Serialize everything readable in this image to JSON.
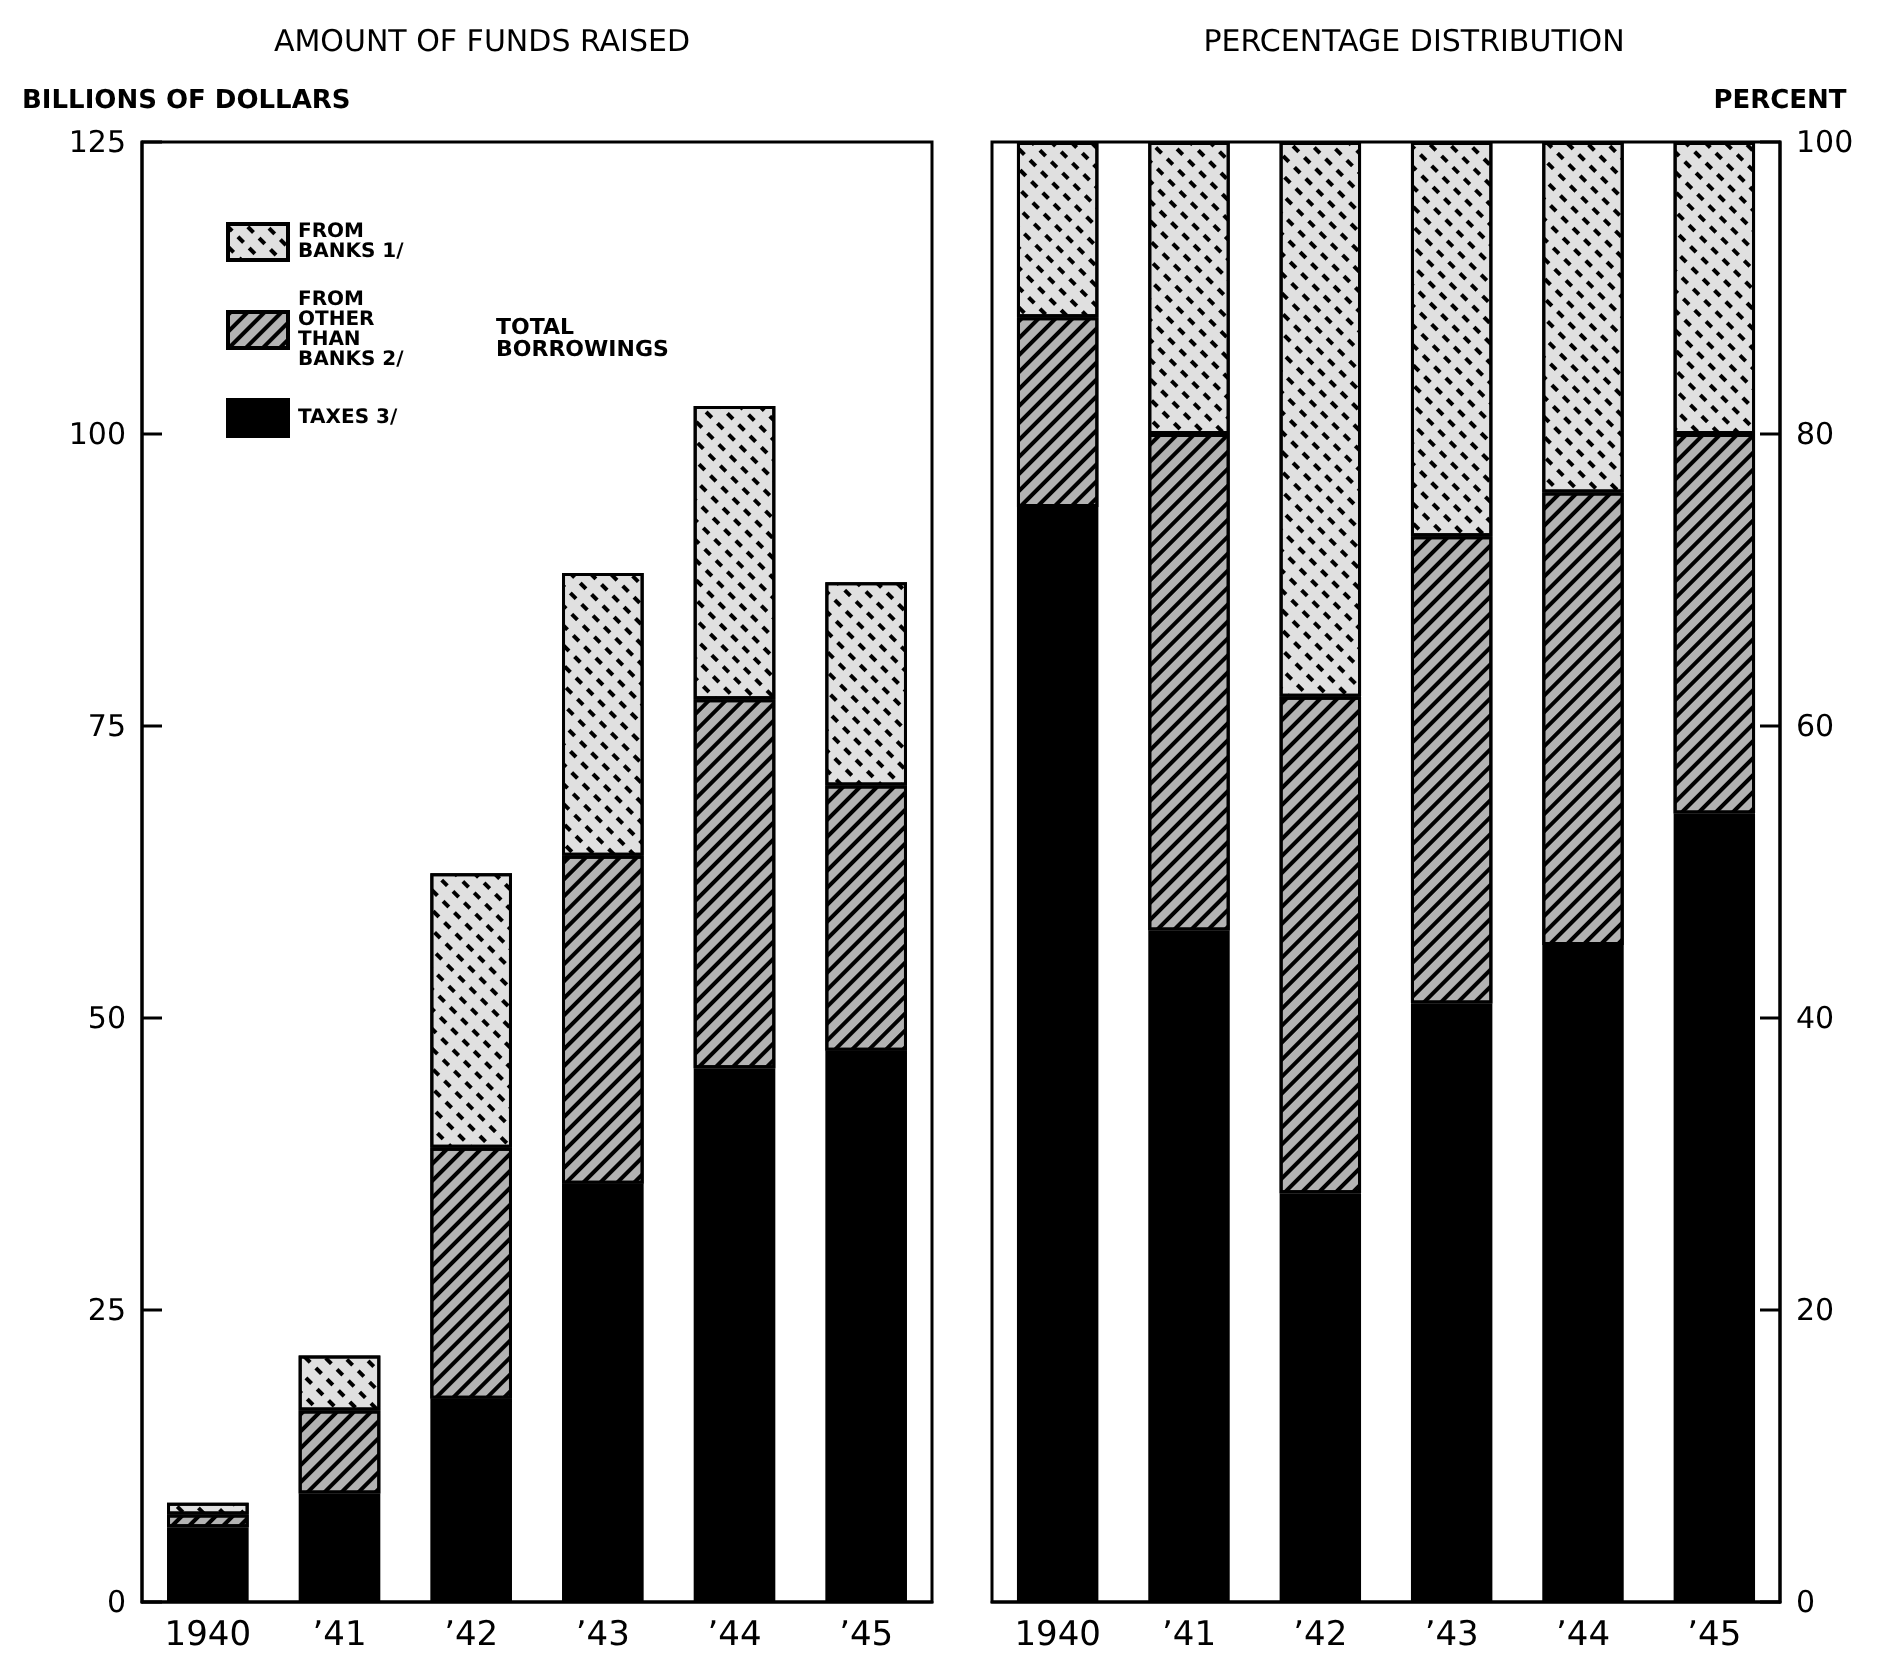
{
  "chart_data": [
    {
      "type": "bar",
      "title": "AMOUNT OF FUNDS RAISED",
      "ylabel": "BILLIONS OF DOLLARS",
      "categories": [
        "1940",
        "’41",
        "’42",
        "’43",
        "’44",
        "’45"
      ],
      "stacked": true,
      "series": [
        {
          "name": "TAXES 3/",
          "color": "#000000",
          "values": [
            6.4,
            9.3,
            17.4,
            35.8,
            45.7,
            47.2
          ]
        },
        {
          "name": "FROM OTHER THAN BANKS 2/",
          "color": "#b3b3b3",
          "values": [
            1.1,
            7.1,
            21.5,
            28.1,
            31.6,
            22.7
          ]
        },
        {
          "name": "FROM BANKS 1/",
          "color": "#e0e0e0",
          "values": [
            1.0,
            4.7,
            23.5,
            24.2,
            25.1,
            17.4
          ]
        }
      ],
      "annotations": [
        "TOTAL BORROWINGS"
      ],
      "ylim": [
        0,
        125
      ],
      "yticks": [
        0,
        25,
        50,
        75,
        100,
        125
      ],
      "grid": false,
      "legend": "top left"
    },
    {
      "type": "bar",
      "title": "PERCENTAGE DISTRIBUTION",
      "ylabel": "PERCENT",
      "categories": [
        "1940",
        "’41",
        "’42",
        "’43",
        "’44",
        "’45"
      ],
      "stacked": true,
      "series": [
        {
          "color": "#000000",
          "values": [
            75,
            46,
            28,
            41,
            45,
            54
          ]
        },
        {
          "color": "#b3b3b3",
          "values": [
            13,
            34,
            34,
            32,
            31,
            26
          ]
        },
        {
          "color": "#e0e0e0",
          "values": [
            12,
            20,
            38,
            27,
            24,
            20
          ]
        }
      ],
      "ylim": [
        0,
        100
      ],
      "yticks": [
        0,
        20,
        40,
        60,
        80,
        100
      ],
      "grid": false,
      "legend": false
    }
  ]
}
